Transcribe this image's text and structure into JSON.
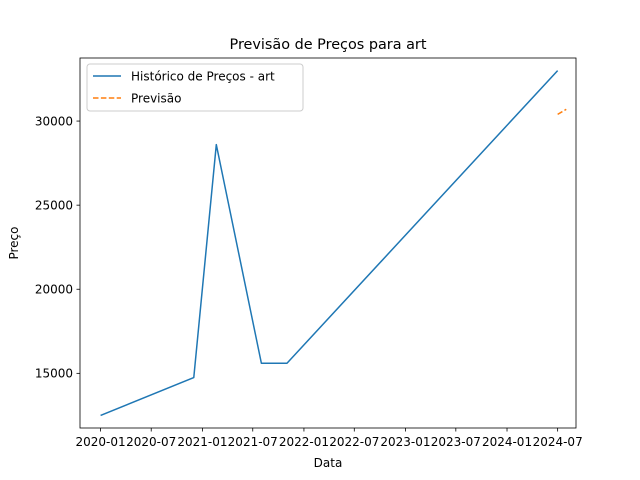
{
  "chart_data": {
    "type": "line",
    "title": "Previsão de Preços para art",
    "xlabel": "Data",
    "ylabel": "Preço",
    "x_ticks": [
      "2020-01",
      "2020-07",
      "2021-01",
      "2021-07",
      "2022-01",
      "2022-07",
      "2023-01",
      "2023-07",
      "2024-01",
      "2024-07"
    ],
    "y_ticks": [
      15000,
      20000,
      25000,
      30000
    ],
    "xlim": [
      "2019-10-19",
      "2024-09-05"
    ],
    "ylim": [
      11750,
      33750
    ],
    "legend_position": "upper-left",
    "grid": false,
    "series": [
      {
        "name": "Histórico de Preços - art",
        "style": "solid",
        "color": "#1f77b4",
        "points": [
          {
            "x": "2020-01-01",
            "y": 12500
          },
          {
            "x": "2020-12-01",
            "y": 14750
          },
          {
            "x": "2021-02-20",
            "y": 28600
          },
          {
            "x": "2021-08-01",
            "y": 15600
          },
          {
            "x": "2021-11-01",
            "y": 15600
          },
          {
            "x": "2024-07-01",
            "y": 33000
          }
        ]
      },
      {
        "name": "Previsão",
        "style": "dashed",
        "color": "#ff7f0e",
        "points": [
          {
            "x": "2024-07-01",
            "y": 30400
          },
          {
            "x": "2024-08-01",
            "y": 30700
          }
        ]
      }
    ]
  }
}
